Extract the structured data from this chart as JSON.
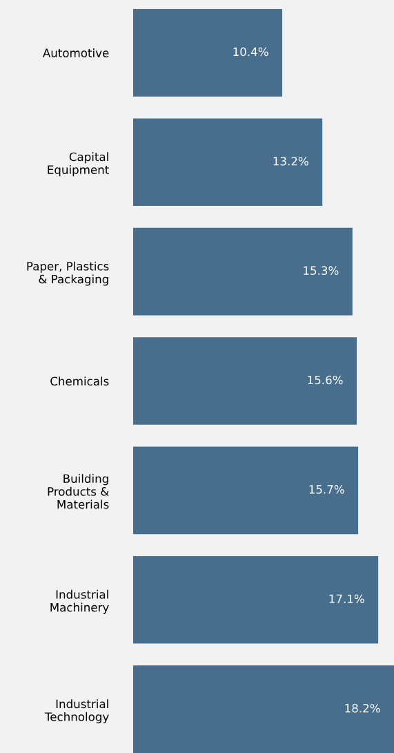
{
  "chart_data": {
    "type": "bar",
    "orientation": "horizontal",
    "categories": [
      "Automotive",
      "Capital\nEquipment",
      "Paper, Plastics\n& Packaging",
      "Chemicals",
      "Building\nProducts &\nMaterials",
      "Industrial\nMachinery",
      "Industrial\nTechnology"
    ],
    "values": [
      10.4,
      13.2,
      15.3,
      15.6,
      15.7,
      17.1,
      18.2
    ],
    "value_labels": [
      "10.4%",
      "13.2%",
      "15.3%",
      "15.6%",
      "15.7%",
      "17.1%",
      "18.2%"
    ],
    "color": "#476e8d",
    "grid": false,
    "legend": false
  }
}
